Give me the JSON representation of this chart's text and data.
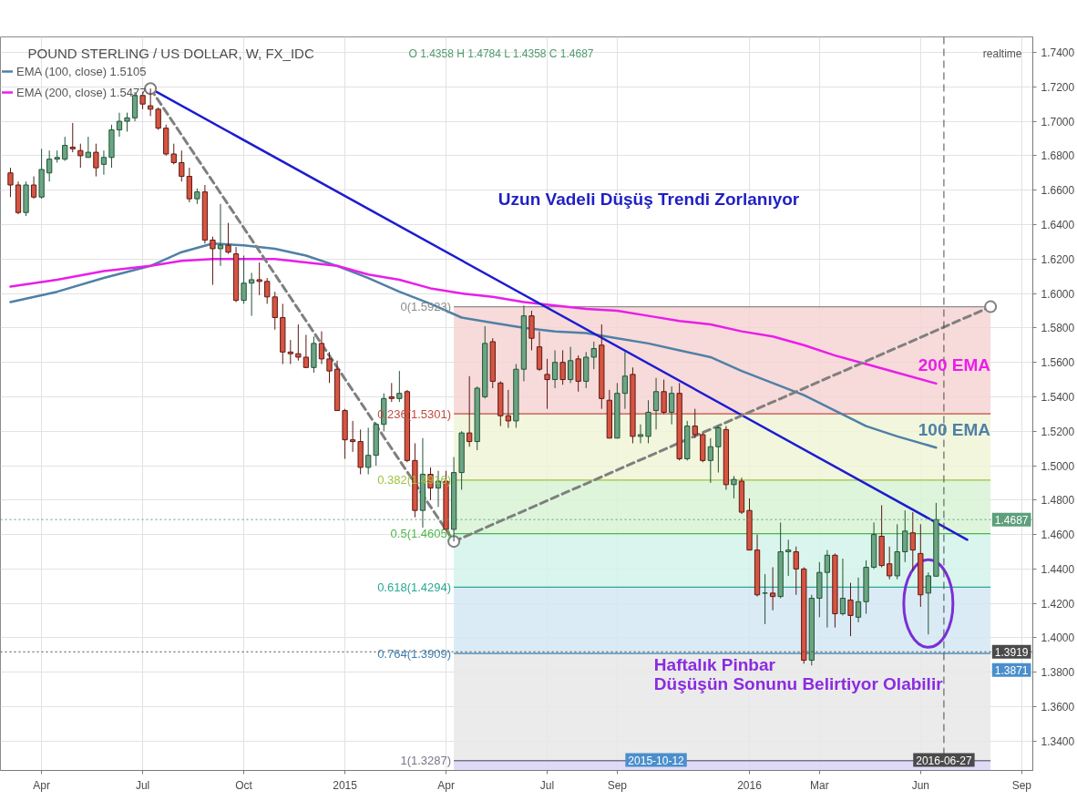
{
  "chart_data": {
    "type": "candlestick",
    "title": "POUND STERLING / US DOLLAR, W, FX_IDC",
    "subtitle": "O 1.4358 H 1.4784 L 1.4358 C 1.4687",
    "x": [
      "2014-03-10",
      "2014-03-17",
      "2014-03-24",
      "2014-03-31",
      "2014-04-07",
      "2014-04-14",
      "2014-04-21",
      "2014-04-28",
      "2014-05-05",
      "2014-05-12",
      "2014-05-19",
      "2014-05-26",
      "2014-06-02",
      "2014-06-09",
      "2014-06-16",
      "2014-06-23",
      "2014-06-30",
      "2014-07-07",
      "2014-07-14",
      "2014-07-21",
      "2014-07-28",
      "2014-08-04",
      "2014-08-11",
      "2014-08-18",
      "2014-08-25",
      "2014-09-01",
      "2014-09-08",
      "2014-09-15",
      "2014-09-22",
      "2014-09-29",
      "2014-10-06",
      "2014-10-13",
      "2014-10-20",
      "2014-10-27",
      "2014-11-03",
      "2014-11-10",
      "2014-11-17",
      "2014-11-24",
      "2014-12-01",
      "2014-12-08",
      "2014-12-15",
      "2014-12-22",
      "2014-12-29",
      "2015-01-05",
      "2015-01-12",
      "2015-01-19",
      "2015-01-26",
      "2015-02-02",
      "2015-02-09",
      "2015-02-16",
      "2015-02-23",
      "2015-03-02",
      "2015-03-09",
      "2015-03-16",
      "2015-03-23",
      "2015-03-30",
      "2015-04-06",
      "2015-04-13",
      "2015-04-20",
      "2015-04-27",
      "2015-05-04",
      "2015-05-11",
      "2015-05-18",
      "2015-05-25",
      "2015-06-01",
      "2015-06-08",
      "2015-06-15",
      "2015-06-22",
      "2015-06-29",
      "2015-07-06",
      "2015-07-13",
      "2015-07-20",
      "2015-07-27",
      "2015-08-03",
      "2015-08-10",
      "2015-08-17",
      "2015-08-24",
      "2015-08-31",
      "2015-09-07",
      "2015-09-14",
      "2015-09-21",
      "2015-09-28",
      "2015-10-05",
      "2015-10-12",
      "2015-10-19",
      "2015-10-26",
      "2015-11-02",
      "2015-11-09",
      "2015-11-16",
      "2015-11-23",
      "2015-11-30",
      "2015-12-07",
      "2015-12-14",
      "2015-12-21",
      "2015-12-28",
      "2016-01-04",
      "2016-01-11",
      "2016-01-18",
      "2016-01-25",
      "2016-02-01",
      "2016-02-08",
      "2016-02-15",
      "2016-02-22",
      "2016-02-29",
      "2016-03-07",
      "2016-03-14",
      "2016-03-21",
      "2016-03-28",
      "2016-04-04",
      "2016-04-11",
      "2016-04-18",
      "2016-04-25",
      "2016-05-02",
      "2016-05-09",
      "2016-05-16",
      "2016-05-23",
      "2016-05-30",
      "2016-06-06",
      "2016-06-13",
      "2016-06-20"
    ],
    "ohlc": [
      [
        1.67,
        1.673,
        1.656,
        1.663
      ],
      [
        1.663,
        1.665,
        1.646,
        1.647
      ],
      [
        1.647,
        1.665,
        1.645,
        1.663
      ],
      [
        1.663,
        1.668,
        1.655,
        1.656
      ],
      [
        1.656,
        1.684,
        1.655,
        1.672
      ],
      [
        1.67,
        1.683,
        1.665,
        1.678
      ],
      [
        1.678,
        1.683,
        1.676,
        1.679
      ],
      [
        1.678,
        1.691,
        1.677,
        1.686
      ],
      [
        1.685,
        1.699,
        1.682,
        1.684
      ],
      [
        1.683,
        1.687,
        1.673,
        1.68
      ],
      [
        1.679,
        1.691,
        1.679,
        1.682
      ],
      [
        1.682,
        1.687,
        1.668,
        1.673
      ],
      [
        1.675,
        1.683,
        1.669,
        1.679
      ],
      [
        1.679,
        1.698,
        1.673,
        1.695
      ],
      [
        1.695,
        1.705,
        1.691,
        1.7
      ],
      [
        1.7,
        1.705,
        1.694,
        1.702
      ],
      [
        1.702,
        1.717,
        1.7,
        1.715
      ],
      [
        1.715,
        1.717,
        1.707,
        1.71
      ],
      [
        1.709,
        1.719,
        1.703,
        1.707
      ],
      [
        1.707,
        1.708,
        1.695,
        1.696
      ],
      [
        1.696,
        1.698,
        1.68,
        1.681
      ],
      [
        1.681,
        1.687,
        1.675,
        1.676
      ],
      [
        1.676,
        1.683,
        1.665,
        1.668
      ],
      [
        1.668,
        1.673,
        1.653,
        1.655
      ],
      [
        1.655,
        1.661,
        1.652,
        1.659
      ],
      [
        1.659,
        1.663,
        1.629,
        1.631
      ],
      [
        1.631,
        1.633,
        1.605,
        1.626
      ],
      [
        1.626,
        1.652,
        1.616,
        1.628
      ],
      [
        1.628,
        1.641,
        1.623,
        1.624
      ],
      [
        1.623,
        1.627,
        1.595,
        1.596
      ],
      [
        1.596,
        1.622,
        1.594,
        1.606
      ],
      [
        1.606,
        1.612,
        1.587,
        1.608
      ],
      [
        1.608,
        1.618,
        1.599,
        1.607
      ],
      [
        1.607,
        1.609,
        1.594,
        1.598
      ],
      [
        1.598,
        1.601,
        1.579,
        1.586
      ],
      [
        1.586,
        1.594,
        1.559,
        1.566
      ],
      [
        1.566,
        1.573,
        1.559,
        1.565
      ],
      [
        1.565,
        1.582,
        1.561,
        1.563
      ],
      [
        1.563,
        1.576,
        1.557,
        1.557
      ],
      [
        1.557,
        1.575,
        1.554,
        1.571
      ],
      [
        1.571,
        1.578,
        1.559,
        1.562
      ],
      [
        1.562,
        1.566,
        1.548,
        1.555
      ],
      [
        1.556,
        1.561,
        1.532,
        1.532
      ],
      [
        1.532,
        1.533,
        1.504,
        1.515
      ],
      [
        1.515,
        1.526,
        1.508,
        1.514
      ],
      [
        1.514,
        1.521,
        1.495,
        1.499
      ],
      [
        1.499,
        1.522,
        1.495,
        1.506
      ],
      [
        1.506,
        1.525,
        1.5,
        1.524
      ],
      [
        1.524,
        1.542,
        1.52,
        1.539
      ],
      [
        1.54,
        1.548,
        1.537,
        1.539
      ],
      [
        1.539,
        1.555,
        1.537,
        1.542
      ],
      [
        1.543,
        1.544,
        1.502,
        1.503
      ],
      [
        1.503,
        1.513,
        1.47,
        1.474
      ],
      [
        1.474,
        1.516,
        1.464,
        1.495
      ],
      [
        1.495,
        1.499,
        1.48,
        1.487
      ],
      [
        1.487,
        1.497,
        1.476,
        1.491
      ],
      [
        1.491,
        1.497,
        1.462,
        1.463
      ],
      [
        1.463,
        1.505,
        1.456,
        1.496
      ],
      [
        1.496,
        1.52,
        1.486,
        1.519
      ],
      [
        1.519,
        1.552,
        1.511,
        1.514
      ],
      [
        1.514,
        1.546,
        1.509,
        1.545
      ],
      [
        1.54,
        1.581,
        1.539,
        1.571
      ],
      [
        1.572,
        1.574,
        1.545,
        1.549
      ],
      [
        1.548,
        1.549,
        1.523,
        1.529
      ],
      [
        1.529,
        1.544,
        1.522,
        1.526
      ],
      [
        1.526,
        1.559,
        1.522,
        1.556
      ],
      [
        1.556,
        1.593,
        1.549,
        1.587
      ],
      [
        1.587,
        1.59,
        1.567,
        1.574
      ],
      [
        1.569,
        1.578,
        1.555,
        1.556
      ],
      [
        1.553,
        1.562,
        1.533,
        1.55
      ],
      [
        1.55,
        1.567,
        1.545,
        1.56
      ],
      [
        1.56,
        1.567,
        1.547,
        1.55
      ],
      [
        1.55,
        1.569,
        1.548,
        1.561
      ],
      [
        1.562,
        1.564,
        1.543,
        1.549
      ],
      [
        1.549,
        1.566,
        1.545,
        1.563
      ],
      [
        1.563,
        1.572,
        1.556,
        1.568
      ],
      [
        1.57,
        1.582,
        1.533,
        1.539
      ],
      [
        1.538,
        1.544,
        1.516,
        1.516
      ],
      [
        1.516,
        1.548,
        1.516,
        1.542
      ],
      [
        1.542,
        1.566,
        1.533,
        1.552
      ],
      [
        1.553,
        1.557,
        1.513,
        1.517
      ],
      [
        1.517,
        1.524,
        1.513,
        1.518
      ],
      [
        1.517,
        1.538,
        1.513,
        1.531
      ],
      [
        1.532,
        1.551,
        1.521,
        1.543
      ],
      [
        1.543,
        1.55,
        1.53,
        1.531
      ],
      [
        1.531,
        1.546,
        1.524,
        1.542
      ],
      [
        1.542,
        1.548,
        1.503,
        1.504
      ],
      [
        1.504,
        1.526,
        1.503,
        1.523
      ],
      [
        1.523,
        1.533,
        1.516,
        1.518
      ],
      [
        1.518,
        1.519,
        1.502,
        1.503
      ],
      [
        1.503,
        1.516,
        1.49,
        1.511
      ],
      [
        1.511,
        1.523,
        1.496,
        1.522
      ],
      [
        1.521,
        1.523,
        1.486,
        1.489
      ],
      [
        1.489,
        1.494,
        1.481,
        1.492
      ],
      [
        1.491,
        1.493,
        1.472,
        1.473
      ],
      [
        1.474,
        1.481,
        1.451,
        1.451
      ],
      [
        1.451,
        1.46,
        1.424,
        1.425
      ],
      [
        1.426,
        1.437,
        1.408,
        1.426
      ],
      [
        1.426,
        1.441,
        1.416,
        1.424
      ],
      [
        1.424,
        1.467,
        1.423,
        1.45
      ],
      [
        1.45,
        1.457,
        1.436,
        1.451
      ],
      [
        1.45,
        1.453,
        1.425,
        1.44
      ],
      [
        1.44,
        1.441,
        1.385,
        1.387
      ],
      [
        1.387,
        1.425,
        1.384,
        1.423
      ],
      [
        1.423,
        1.444,
        1.412,
        1.438
      ],
      [
        1.438,
        1.451,
        1.406,
        1.448
      ],
      [
        1.448,
        1.449,
        1.406,
        1.414
      ],
      [
        1.414,
        1.446,
        1.413,
        1.423
      ],
      [
        1.422,
        1.432,
        1.401,
        1.413
      ],
      [
        1.412,
        1.435,
        1.409,
        1.421
      ],
      [
        1.421,
        1.445,
        1.414,
        1.441
      ],
      [
        1.441,
        1.467,
        1.44,
        1.46
      ],
      [
        1.459,
        1.477,
        1.441,
        1.442
      ],
      [
        1.443,
        1.453,
        1.434,
        1.436
      ],
      [
        1.436,
        1.466,
        1.434,
        1.45
      ],
      [
        1.45,
        1.474,
        1.444,
        1.462
      ],
      [
        1.461,
        1.473,
        1.439,
        1.451
      ],
      [
        1.449,
        1.466,
        1.418,
        1.425
      ],
      [
        1.426,
        1.438,
        1.402,
        1.436
      ],
      [
        1.4358,
        1.4784,
        1.4358,
        1.4687
      ]
    ],
    "series": [
      {
        "name": "EMA (100, close) 1.5105",
        "type": "line",
        "color": "#4f80a6",
        "x": [
          "2014-03-10",
          "2014-04-21",
          "2014-06-02",
          "2014-07-14",
          "2014-08-11",
          "2014-09-08",
          "2014-10-06",
          "2014-11-03",
          "2014-12-01",
          "2014-12-29",
          "2015-01-26",
          "2015-02-23",
          "2015-03-23",
          "2015-04-20",
          "2015-05-18",
          "2015-06-15",
          "2015-07-13",
          "2015-08-10",
          "2015-09-07",
          "2015-10-05",
          "2015-11-02",
          "2015-11-30",
          "2015-12-28",
          "2016-01-25",
          "2016-02-22",
          "2016-03-21",
          "2016-04-18",
          "2016-05-16",
          "2016-06-20"
        ],
        "values": [
          1.595,
          1.601,
          1.609,
          1.616,
          1.624,
          1.629,
          1.628,
          1.626,
          1.622,
          1.616,
          1.609,
          1.601,
          1.594,
          1.586,
          1.583,
          1.58,
          1.578,
          1.577,
          1.574,
          1.571,
          1.567,
          1.563,
          1.555,
          1.548,
          1.541,
          1.532,
          1.523,
          1.517,
          1.5105
        ]
      },
      {
        "name": "EMA (200, close) 1.5477",
        "type": "line",
        "color": "#e91ee9",
        "x": [
          "2014-03-10",
          "2014-04-21",
          "2014-06-02",
          "2014-07-14",
          "2014-08-11",
          "2014-09-08",
          "2014-10-06",
          "2014-11-03",
          "2014-12-01",
          "2014-12-29",
          "2015-01-26",
          "2015-02-23",
          "2015-03-23",
          "2015-04-20",
          "2015-05-18",
          "2015-06-15",
          "2015-07-13",
          "2015-08-10",
          "2015-09-07",
          "2015-10-05",
          "2015-11-02",
          "2015-11-30",
          "2015-12-28",
          "2016-01-25",
          "2016-02-22",
          "2016-03-21",
          "2016-04-18",
          "2016-05-16",
          "2016-06-20"
        ],
        "values": [
          1.604,
          1.608,
          1.613,
          1.616,
          1.619,
          1.62,
          1.62,
          1.62,
          1.618,
          1.616,
          1.611,
          1.608,
          1.603,
          1.6,
          1.598,
          1.595,
          1.593,
          1.591,
          1.59,
          1.587,
          1.584,
          1.582,
          1.578,
          1.575,
          1.57,
          1.564,
          1.559,
          1.554,
          1.5477
        ]
      },
      {
        "type": "line",
        "color": "#1c1cd0",
        "x": [
          "2014-07-14",
          "2016-07-18"
        ],
        "values": [
          1.719,
          1.457
        ]
      },
      {
        "type": "line",
        "color": "#7f7f7f",
        "line_style": "dashed",
        "marker": "circle",
        "x": [
          "2014-07-14",
          "2015-04-13",
          "2016-08-08"
        ],
        "values": [
          1.719,
          1.456,
          1.5923
        ]
      }
    ],
    "xlim": [
      "2014-03-01",
      "2016-09-15"
    ],
    "ylim": [
      1.323,
      1.749
    ],
    "xticks": [
      {
        "value": "2014-04-07",
        "label": "Apr"
      },
      {
        "value": "2014-07-07",
        "label": "Jul"
      },
      {
        "value": "2014-10-06",
        "label": "Oct"
      },
      {
        "value": "2015-01-05",
        "label": "2015"
      },
      {
        "value": "2015-04-06",
        "label": "Apr"
      },
      {
        "value": "2015-07-06",
        "label": "Jul"
      },
      {
        "value": "2015-09-07",
        "label": "Sep"
      },
      {
        "value": "2016-01-04",
        "label": "2016"
      },
      {
        "value": "2016-03-07",
        "label": "Mar"
      },
      {
        "value": "2016-06-06",
        "label": "Jun"
      },
      {
        "value": "2016-09-05",
        "label": "Sep"
      }
    ],
    "yticks": [
      {
        "value": 1.34,
        "label": "1.3400"
      },
      {
        "value": 1.36,
        "label": "1.3600"
      },
      {
        "value": 1.38,
        "label": "1.3800"
      },
      {
        "value": 1.4,
        "label": "1.4000"
      },
      {
        "value": 1.42,
        "label": "1.4200"
      },
      {
        "value": 1.44,
        "label": "1.4400"
      },
      {
        "value": 1.46,
        "label": "1.4600"
      },
      {
        "value": 1.48,
        "label": "1.4800"
      },
      {
        "value": 1.5,
        "label": "1.5000"
      },
      {
        "value": 1.52,
        "label": "1.5200"
      },
      {
        "value": 1.54,
        "label": "1.5400"
      },
      {
        "value": 1.56,
        "label": "1.5600"
      },
      {
        "value": 1.58,
        "label": "1.5800"
      },
      {
        "value": 1.6,
        "label": "1.6000"
      },
      {
        "value": 1.62,
        "label": "1.6200"
      },
      {
        "value": 1.64,
        "label": "1.6400"
      },
      {
        "value": 1.66,
        "label": "1.6600"
      },
      {
        "value": 1.68,
        "label": "1.6800"
      },
      {
        "value": 1.7,
        "label": "1.7000"
      },
      {
        "value": 1.72,
        "label": "1.7200"
      },
      {
        "value": 1.74,
        "label": "1.7400"
      }
    ],
    "grid": true,
    "legend": "top left",
    "bands": [
      {
        "axis": "y",
        "from": 1.5301,
        "to": 1.5923,
        "color": "#f6d4d4"
      },
      {
        "axis": "y",
        "from": 1.4916,
        "to": 1.5301,
        "color": "#eff4d6"
      },
      {
        "axis": "y",
        "from": 1.4605,
        "to": 1.4916,
        "color": "#d8f3d6"
      },
      {
        "axis": "y",
        "from": 1.4294,
        "to": 1.4605,
        "color": "#d3f3ea"
      },
      {
        "axis": "y",
        "from": 1.3909,
        "to": 1.4294,
        "color": "#d4e8f4"
      },
      {
        "axis": "y",
        "from": 1.3287,
        "to": 1.3909,
        "color": "#e7e7e7"
      },
      {
        "axis": "y",
        "from": 1.323,
        "to": 1.3287,
        "color": "#d9d5f6"
      }
    ],
    "ref_lines": [
      {
        "axis": "y",
        "value": 1.5923,
        "label": "0(1.5923)",
        "color": "#8c8c8c"
      },
      {
        "axis": "y",
        "value": 1.5301,
        "label": "0.236(1.5301)",
        "color": "#c24a3e"
      },
      {
        "axis": "y",
        "value": 1.4916,
        "label": "0.382(1.4916)",
        "color": "#9fc23f"
      },
      {
        "axis": "y",
        "value": 1.4605,
        "label": "0.5(1.4605)",
        "color": "#4cb84c"
      },
      {
        "axis": "y",
        "value": 1.4294,
        "label": "0.618(1.4294)",
        "color": "#2aa895"
      },
      {
        "axis": "y",
        "value": 1.3909,
        "label": "0.764(1.3909)",
        "color": "#3f7fae"
      },
      {
        "axis": "y",
        "value": 1.3287,
        "label": "1(1.3287)",
        "color": "#77778a"
      },
      {
        "axis": "y",
        "value": 1.4687,
        "label": "1.4687",
        "color": "#5e9f7c",
        "line_style": "dotted"
      },
      {
        "axis": "y",
        "value": 1.3919,
        "label": "1.3919",
        "color": "#4a4a4a",
        "line_style": "dotted"
      },
      {
        "axis": "x",
        "value": "2016-06-27",
        "label": "2016-06-27",
        "color": "#4a4a4a",
        "line_style": "dashed"
      }
    ],
    "annotations": [
      "Uzun Vadeli Düşüş Trendi Zorlanıyor",
      {
        "text": "200 EMA",
        "x": "2016-06-20",
        "y": 1.5477
      },
      {
        "text": "100 EMA",
        "x": "2016-06-20",
        "y": 1.5105
      },
      {
        "text": "Haftalık Pinbar\nDüşüşün Sonunu Belirtiyor Olabilir",
        "x": "2016-06-13",
        "y": 1.402
      },
      "1.3871",
      {
        "text": "2015-10-12",
        "x": "2015-10-12"
      },
      "realtime"
    ]
  }
}
